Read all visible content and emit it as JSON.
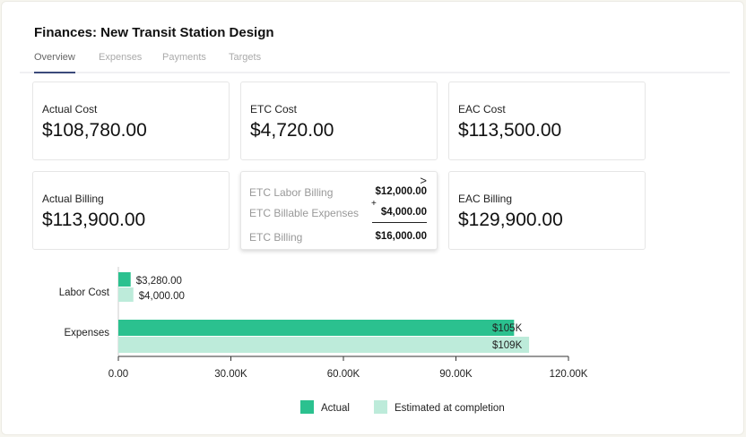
{
  "title": "Finances: New Transit Station Design",
  "tabs": [
    {
      "label": "Overview",
      "active": true
    },
    {
      "label": "Expenses"
    },
    {
      "label": "Payments"
    },
    {
      "label": "Targets"
    }
  ],
  "cards": {
    "actual_cost": {
      "label": "Actual Cost",
      "value": "$108,780.00"
    },
    "etc_cost": {
      "label": "ETC Cost",
      "value": "$4,720.00"
    },
    "eac_cost": {
      "label": "EAC Cost",
      "value": "$113,500.00"
    },
    "actual_billing": {
      "label": "Actual Billing",
      "value": "$113,900.00"
    },
    "etc_breakdown": {
      "labor_label": "ETC  Labor Billing",
      "labor_value": "$12,000.00",
      "exp_label": "ETC Billable Expenses",
      "exp_value": "$4,000.00",
      "plus": "+",
      "total_label": "ETC Billing",
      "total_value": "$16,000.00",
      "chevron": ">"
    },
    "eac_billing": {
      "label": "EAC Billing",
      "value": "$129,900.00"
    }
  },
  "colors": {
    "actual": "#2bc18f",
    "estimated": "#bdebda"
  },
  "chart_data": {
    "type": "bar",
    "orientation": "horizontal",
    "categories": [
      "Labor Cost",
      "Expenses"
    ],
    "series": [
      {
        "name": "Actual",
        "values": [
          3280,
          105500
        ],
        "labels": [
          "$3,280.00",
          "$105K"
        ]
      },
      {
        "name": "Estimated at completion",
        "values": [
          4000,
          109500
        ],
        "labels": [
          "$4,000.00",
          "$109K"
        ]
      }
    ],
    "xlim": [
      0,
      120000
    ],
    "xticks": [
      0,
      30000,
      60000,
      90000,
      120000
    ],
    "xtick_labels": [
      "0.00",
      "30.00K",
      "60.00K",
      "90.00K",
      "120.00K"
    ],
    "legend": "bottom"
  }
}
